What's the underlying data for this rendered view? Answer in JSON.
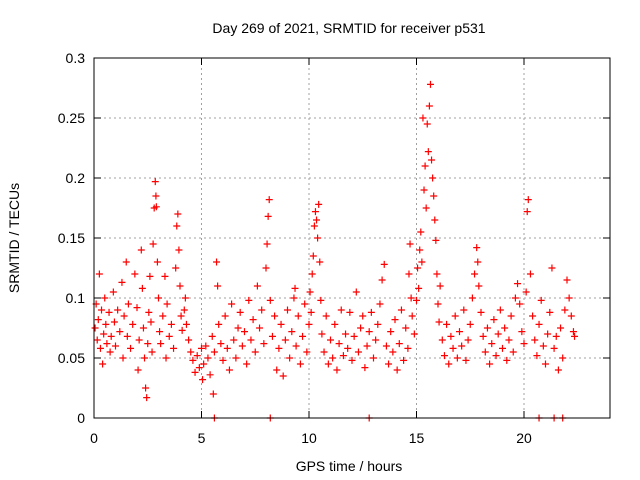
{
  "chart_data": {
    "type": "scatter",
    "title": "Day 269 of 2021, SRMTID for receiver p531",
    "xlabel": "GPS time / hours",
    "ylabel": "SRMTID / TECUs",
    "xlim": [
      0,
      24
    ],
    "ylim": [
      0,
      0.3
    ],
    "x_ticks": [
      0,
      5,
      10,
      15,
      20
    ],
    "x_tick_labels": [
      "0",
      "5",
      "10",
      "15",
      "20"
    ],
    "y_ticks": [
      0,
      0.05,
      0.1,
      0.15,
      0.2,
      0.25,
      0.3
    ],
    "y_tick_labels": [
      "0",
      "0.05",
      "0.1",
      "0.15",
      "0.2",
      "0.25",
      "0.3"
    ],
    "grid": true,
    "marker": "plus",
    "color": "#ff0000",
    "series": [
      {
        "name": "SRMTID",
        "points": [
          [
            0.05,
            0.075
          ],
          [
            0.1,
            0.095
          ],
          [
            0.15,
            0.065
          ],
          [
            0.2,
            0.082
          ],
          [
            0.25,
            0.12
          ],
          [
            0.3,
            0.058
          ],
          [
            0.35,
            0.09
          ],
          [
            0.4,
            0.045
          ],
          [
            0.45,
            0.07
          ],
          [
            0.5,
            0.1
          ],
          [
            0.55,
            0.078
          ],
          [
            0.6,
            0.062
          ],
          [
            0.7,
            0.088
          ],
          [
            0.75,
            0.055
          ],
          [
            0.8,
            0.068
          ],
          [
            0.9,
            0.105
          ],
          [
            0.95,
            0.08
          ],
          [
            1.0,
            0.06
          ],
          [
            1.1,
            0.09
          ],
          [
            1.2,
            0.072
          ],
          [
            1.3,
            0.113
          ],
          [
            1.35,
            0.05
          ],
          [
            1.4,
            0.085
          ],
          [
            1.5,
            0.13
          ],
          [
            1.55,
            0.068
          ],
          [
            1.6,
            0.095
          ],
          [
            1.7,
            0.058
          ],
          [
            1.8,
            0.078
          ],
          [
            1.9,
            0.12
          ],
          [
            2.0,
            0.092
          ],
          [
            2.05,
            0.04
          ],
          [
            2.1,
            0.065
          ],
          [
            2.2,
            0.14
          ],
          [
            2.25,
            0.108
          ],
          [
            2.3,
            0.075
          ],
          [
            2.35,
            0.05
          ],
          [
            2.4,
            0.025
          ],
          [
            2.45,
            0.017
          ],
          [
            2.5,
            0.062
          ],
          [
            2.55,
            0.088
          ],
          [
            2.6,
            0.118
          ],
          [
            2.65,
            0.08
          ],
          [
            2.7,
            0.055
          ],
          [
            2.75,
            0.145
          ],
          [
            2.8,
            0.175
          ],
          [
            2.85,
            0.197
          ],
          [
            2.88,
            0.185
          ],
          [
            2.9,
            0.176
          ],
          [
            2.95,
            0.13
          ],
          [
            3.0,
            0.1
          ],
          [
            3.05,
            0.072
          ],
          [
            3.1,
            0.062
          ],
          [
            3.2,
            0.085
          ],
          [
            3.3,
            0.118
          ],
          [
            3.35,
            0.05
          ],
          [
            3.4,
            0.095
          ],
          [
            3.5,
            0.068
          ],
          [
            3.6,
            0.078
          ],
          [
            3.7,
            0.058
          ],
          [
            3.8,
            0.125
          ],
          [
            3.85,
            0.16
          ],
          [
            3.9,
            0.17
          ],
          [
            3.95,
            0.14
          ],
          [
            4.0,
            0.11
          ],
          [
            4.05,
            0.085
          ],
          [
            4.1,
            0.073
          ],
          [
            4.2,
            0.09
          ],
          [
            4.25,
            0.1
          ],
          [
            4.3,
            0.078
          ],
          [
            4.4,
            0.065
          ],
          [
            4.5,
            0.055
          ],
          [
            4.6,
            0.048
          ],
          [
            4.7,
            0.038
          ],
          [
            4.8,
            0.052
          ],
          [
            4.9,
            0.042
          ],
          [
            5.0,
            0.058
          ],
          [
            5.05,
            0.032
          ],
          [
            5.1,
            0.045
          ],
          [
            5.2,
            0.06
          ],
          [
            5.3,
            0.05
          ],
          [
            5.4,
            0.036
          ],
          [
            5.5,
            0.068
          ],
          [
            5.55,
            0.02
          ],
          [
            5.6,
            0.055
          ],
          [
            5.7,
            0.13
          ],
          [
            5.75,
            0.11
          ],
          [
            5.8,
            0.078
          ],
          [
            5.9,
            0.062
          ],
          [
            6.0,
            0.048
          ],
          [
            6.1,
            0.085
          ],
          [
            6.2,
            0.058
          ],
          [
            6.3,
            0.04
          ],
          [
            6.4,
            0.095
          ],
          [
            6.5,
            0.065
          ],
          [
            6.6,
            0.05
          ],
          [
            6.7,
            0.075
          ],
          [
            6.8,
            0.088
          ],
          [
            6.9,
            0.06
          ],
          [
            7.0,
            0.072
          ],
          [
            7.1,
            0.045
          ],
          [
            7.2,
            0.098
          ],
          [
            7.3,
            0.065
          ],
          [
            7.4,
            0.082
          ],
          [
            7.5,
            0.055
          ],
          [
            7.6,
            0.11
          ],
          [
            7.7,
            0.075
          ],
          [
            7.8,
            0.09
          ],
          [
            7.9,
            0.062
          ],
          [
            8.0,
            0.125
          ],
          [
            8.05,
            0.145
          ],
          [
            8.1,
            0.168
          ],
          [
            8.15,
            0.182
          ],
          [
            8.2,
            0.098
          ],
          [
            8.3,
            0.068
          ],
          [
            8.4,
            0.085
          ],
          [
            8.5,
            0.04
          ],
          [
            8.6,
            0.058
          ],
          [
            8.7,
            0.078
          ],
          [
            8.8,
            0.035
          ],
          [
            8.9,
            0.065
          ],
          [
            9.0,
            0.09
          ],
          [
            9.1,
            0.05
          ],
          [
            9.2,
            0.072
          ],
          [
            9.3,
            0.1
          ],
          [
            9.35,
            0.108
          ],
          [
            9.4,
            0.06
          ],
          [
            9.5,
            0.085
          ],
          [
            9.6,
            0.045
          ],
          [
            9.7,
            0.068
          ],
          [
            9.8,
            0.095
          ],
          [
            9.9,
            0.055
          ],
          [
            10.0,
            0.078
          ],
          [
            10.05,
            0.105
          ],
          [
            10.1,
            0.088
          ],
          [
            10.15,
            0.12
          ],
          [
            10.2,
            0.135
          ],
          [
            10.25,
            0.16
          ],
          [
            10.3,
            0.172
          ],
          [
            10.35,
            0.165
          ],
          [
            10.4,
            0.15
          ],
          [
            10.45,
            0.178
          ],
          [
            10.5,
            0.13
          ],
          [
            10.55,
            0.098
          ],
          [
            10.6,
            0.07
          ],
          [
            10.7,
            0.055
          ],
          [
            10.8,
            0.085
          ],
          [
            10.9,
            0.045
          ],
          [
            11.0,
            0.065
          ],
          [
            11.1,
            0.05
          ],
          [
            11.2,
            0.078
          ],
          [
            11.3,
            0.04
          ],
          [
            11.4,
            0.062
          ],
          [
            11.5,
            0.09
          ],
          [
            11.6,
            0.052
          ],
          [
            11.7,
            0.07
          ],
          [
            11.8,
            0.058
          ],
          [
            11.9,
            0.088
          ],
          [
            12.0,
            0.048
          ],
          [
            12.1,
            0.068
          ],
          [
            12.2,
            0.105
          ],
          [
            12.3,
            0.055
          ],
          [
            12.4,
            0.075
          ],
          [
            12.5,
            0.085
          ],
          [
            12.6,
            0.042
          ],
          [
            12.7,
            0.06
          ],
          [
            12.8,
            0.072
          ],
          [
            12.9,
            0.088
          ],
          [
            13.0,
            0.05
          ],
          [
            13.1,
            0.065
          ],
          [
            13.2,
            0.078
          ],
          [
            13.3,
            0.095
          ],
          [
            13.4,
            0.115
          ],
          [
            13.5,
            0.128
          ],
          [
            13.6,
            0.06
          ],
          [
            13.7,
            0.045
          ],
          [
            13.8,
            0.072
          ],
          [
            13.9,
            0.055
          ],
          [
            14.0,
            0.082
          ],
          [
            14.1,
            0.04
          ],
          [
            14.2,
            0.062
          ],
          [
            14.3,
            0.09
          ],
          [
            14.4,
            0.048
          ],
          [
            14.5,
            0.075
          ],
          [
            14.6,
            0.058
          ],
          [
            14.65,
            0.12
          ],
          [
            14.7,
            0.145
          ],
          [
            14.75,
            0.1
          ],
          [
            14.8,
            0.085
          ],
          [
            14.9,
            0.07
          ],
          [
            15.0,
            0.098
          ],
          [
            15.05,
            0.125
          ],
          [
            15.1,
            0.108
          ],
          [
            15.15,
            0.14
          ],
          [
            15.2,
            0.155
          ],
          [
            15.25,
            0.13
          ],
          [
            15.3,
            0.25
          ],
          [
            15.35,
            0.19
          ],
          [
            15.4,
            0.21
          ],
          [
            15.45,
            0.175
          ],
          [
            15.5,
            0.245
          ],
          [
            15.55,
            0.222
          ],
          [
            15.6,
            0.26
          ],
          [
            15.65,
            0.278
          ],
          [
            15.7,
            0.215
          ],
          [
            15.75,
            0.2
          ],
          [
            15.8,
            0.185
          ],
          [
            15.85,
            0.165
          ],
          [
            15.9,
            0.148
          ],
          [
            15.95,
            0.12
          ],
          [
            16.0,
            0.095
          ],
          [
            16.05,
            0.08
          ],
          [
            16.1,
            0.11
          ],
          [
            16.2,
            0.065
          ],
          [
            16.3,
            0.052
          ],
          [
            16.4,
            0.078
          ],
          [
            16.5,
            0.045
          ],
          [
            16.6,
            0.068
          ],
          [
            16.7,
            0.058
          ],
          [
            16.8,
            0.085
          ],
          [
            16.9,
            0.05
          ],
          [
            17.0,
            0.072
          ],
          [
            17.1,
            0.06
          ],
          [
            17.2,
            0.09
          ],
          [
            17.3,
            0.048
          ],
          [
            17.4,
            0.065
          ],
          [
            17.5,
            0.078
          ],
          [
            17.6,
            0.1
          ],
          [
            17.7,
            0.12
          ],
          [
            17.8,
            0.142
          ],
          [
            17.85,
            0.13
          ],
          [
            17.9,
            0.11
          ],
          [
            18.0,
            0.088
          ],
          [
            18.1,
            0.068
          ],
          [
            18.2,
            0.055
          ],
          [
            18.3,
            0.075
          ],
          [
            18.4,
            0.045
          ],
          [
            18.5,
            0.062
          ],
          [
            18.6,
            0.082
          ],
          [
            18.7,
            0.052
          ],
          [
            18.8,
            0.07
          ],
          [
            18.9,
            0.09
          ],
          [
            19.0,
            0.058
          ],
          [
            19.1,
            0.075
          ],
          [
            19.2,
            0.048
          ],
          [
            19.3,
            0.065
          ],
          [
            19.4,
            0.085
          ],
          [
            19.5,
            0.055
          ],
          [
            19.6,
            0.1
          ],
          [
            19.7,
            0.112
          ],
          [
            19.8,
            0.095
          ],
          [
            19.9,
            0.072
          ],
          [
            20.0,
            0.062
          ],
          [
            20.1,
            0.105
          ],
          [
            20.15,
            0.172
          ],
          [
            20.2,
            0.182
          ],
          [
            20.3,
            0.12
          ],
          [
            20.4,
            0.085
          ],
          [
            20.5,
            0.065
          ],
          [
            20.6,
            0.052
          ],
          [
            20.7,
            0.078
          ],
          [
            20.8,
            0.098
          ],
          [
            20.9,
            0.06
          ],
          [
            21.0,
            0.045
          ],
          [
            21.1,
            0.07
          ],
          [
            21.2,
            0.088
          ],
          [
            21.3,
            0.125
          ],
          [
            21.4,
            0.058
          ],
          [
            21.5,
            0.068
          ],
          [
            21.6,
            0.04
          ],
          [
            21.7,
            0.075
          ],
          [
            21.8,
            0.05
          ],
          [
            21.9,
            0.09
          ],
          [
            22.0,
            0.115
          ],
          [
            22.1,
            0.1
          ],
          [
            22.2,
            0.085
          ],
          [
            22.3,
            0.072
          ],
          [
            22.35,
            0.068
          ],
          [
            5.6,
            0.0
          ],
          [
            8.2,
            0.0
          ],
          [
            12.8,
            0.0
          ],
          [
            20.7,
            0.0
          ],
          [
            21.4,
            0.0
          ],
          [
            21.8,
            0.0
          ]
        ]
      }
    ]
  }
}
